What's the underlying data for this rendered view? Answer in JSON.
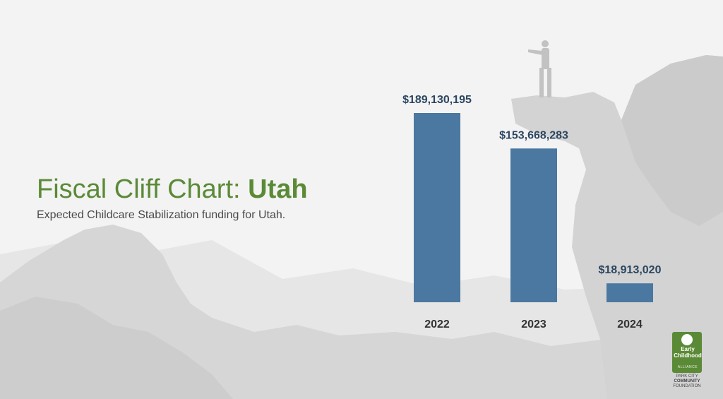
{
  "title": {
    "prefix": "Fiscal Cliff Chart: ",
    "emphasis": "Utah"
  },
  "subtitle": "Expected Childcare Stabilization funding for Utah.",
  "colors": {
    "title": "#5b8a37",
    "bar": "#4a78a1",
    "value_label": "#2c4660"
  },
  "chart_data": {
    "type": "bar",
    "categories": [
      "2022",
      "2023",
      "2024"
    ],
    "values": [
      189130195,
      153668283,
      18913020
    ],
    "value_labels": [
      "$189,130,195",
      "$153,668,283",
      "$18,913,020"
    ],
    "title": "",
    "xlabel": "",
    "ylabel": "",
    "ylim": [
      0,
      189130195
    ],
    "grid": false
  },
  "logo": {
    "line1": "Early",
    "line2": "Childhood",
    "line3": "ALLIANCE",
    "line4": "PARK CITY",
    "line5": "COMMUNITY",
    "line6": "FOUNDATION"
  }
}
